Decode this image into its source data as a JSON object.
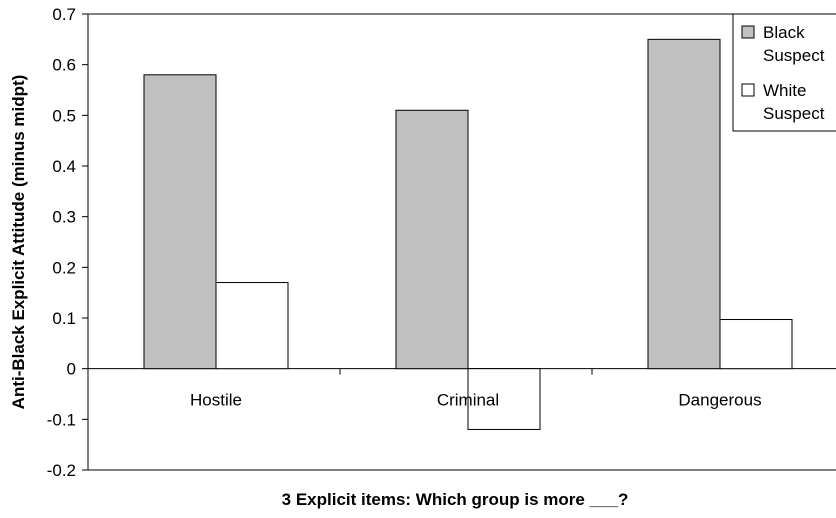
{
  "chart_data": {
    "type": "bar",
    "title": "",
    "xlabel": "3 Explicit items: Which group is more ___?",
    "ylabel": "Anti-Black Explicit Attitude (minus midpt)",
    "categories": [
      "Hostile",
      "Criminal",
      "Dangerous"
    ],
    "series": [
      {
        "name": "Black Suspect",
        "name_lines": [
          "Black",
          "Suspect"
        ],
        "values": [
          0.58,
          0.51,
          0.65
        ],
        "color": "#c0c0c0"
      },
      {
        "name": "White Suspect",
        "name_lines": [
          "White",
          "Suspect"
        ],
        "values": [
          0.17,
          -0.12,
          0.097
        ],
        "color": "#ffffff"
      }
    ],
    "ylim": [
      -0.2,
      0.7
    ],
    "yticks": [
      0.7,
      0.6,
      0.5,
      0.4,
      0.3,
      0.2,
      0.1,
      0,
      -0.1,
      -0.2
    ],
    "ytick_labels": [
      "0.7",
      "0.6",
      "0.5",
      "0.4",
      "0.3",
      "0.2",
      "0.1",
      "0",
      "-0.1",
      "-0.2"
    ],
    "grid": false,
    "legend_position": "top-right"
  }
}
